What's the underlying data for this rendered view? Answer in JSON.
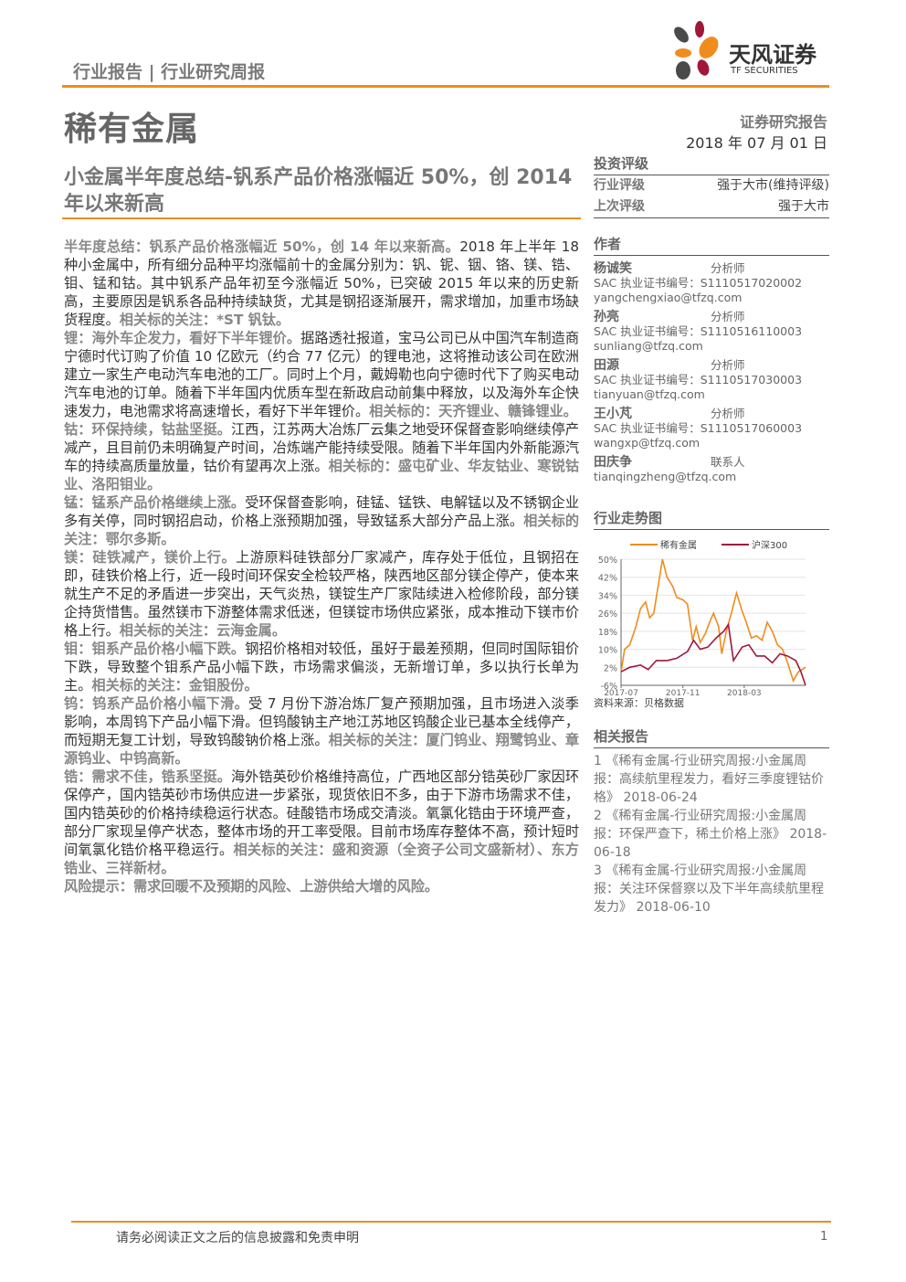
{
  "header": {
    "category": "行业报告 | 行业研究周报",
    "logo_cn": "天风证券",
    "logo_en": "TF SECURITIES",
    "sector": "稀有金属",
    "report_type": "证券研究报告",
    "date": "2018 年 07 月 01 日"
  },
  "title": "小金属半年度总结-钒系产品价格涨幅近 50%，创 2014 年以来新高",
  "paragraphs": [
    {
      "lead": "半年度总结：钒系产品价格涨幅近 50%，创 14 年以来新高。",
      "text": "2018 年上半年 18 种小金属中，所有细分品种平均涨幅前十的金属分别为：钒、铌、铟、铬、镁、锆、钼、锰和钴。其中钒系产品年初至今涨幅近 50%，已突破 2015 年以来的历史新高，主要原因是钒系各品种持续缺货，尤其是钢招逐渐展开，需求增加，加重市场缺货程度。",
      "tail": "相关标的关注：*ST 钒钛。"
    },
    {
      "lead": "锂：海外车企发力，看好下半年锂价。",
      "text": "据路透社报道，宝马公司已从中国汽车制造商宁德时代订购了价值 10 亿欧元（约合 77 亿元）的锂电池，这将推动该公司在欧洲建立一家生产电动汽车电池的工厂。同时上个月，戴姆勒也向宁德时代下了购买电动汽车电池的订单。随着下半年国内优质车型在新政启动前集中释放，以及海外车企快速发力，电池需求将高速增长，看好下半年锂价。",
      "tail": "相关标的：天齐锂业、赣锋锂业。"
    },
    {
      "lead": "钴：环保持续，钴盐坚挺。",
      "text": "江西，江苏两大冶炼厂云集之地受环保督查影响继续停产减产，且目前仍未明确复产时间，冶炼端产能持续受限。随着下半年国内外新能源汽车的持续高质量放量，钴价有望再次上涨。",
      "tail": "相关标的：盛屯矿业、华友钴业、寒锐钴业、洛阳钼业。"
    },
    {
      "lead": "锰：锰系产品价格继续上涨。",
      "text": "受环保督查影响，硅锰、锰铁、电解锰以及不锈钢企业多有关停，同时钢招启动，价格上涨预期加强，导致锰系大部分产品上涨。",
      "tail": "相关标的关注：鄂尔多斯。"
    },
    {
      "lead": "镁：硅铁减产，镁价上行。",
      "text": "上游原料硅铁部分厂家减产，库存处于低位，且钢招在即，硅铁价格上行，近一段时间环保安全检较严格，陕西地区部分镁企停产，使本来就生产不足的矛盾进一步突出，天气炎热，镁锭生产厂家陆续进入检修阶段，部分镁企持货惜售。虽然镁市下游整体需求低迷，但镁锭市场供应紧张，成本推动下镁市价格上行。",
      "tail": "相关标的关注：云海金属。"
    },
    {
      "lead": "钼：钼系产品价格小幅下跌。",
      "text": "钢招价格相对较低，虽好于最差预期，但同时国际钼价下跌，导致整个钼系产品小幅下跌，市场需求偏淡，无新增订单，多以执行长单为主。",
      "tail": "相关标的关注：金钼股份。"
    },
    {
      "lead": "钨：钨系产品价格小幅下滑。",
      "text": "受 7 月份下游冶炼厂复产预期加强，且市场进入淡季影响，本周钨下产品小幅下滑。但钨酸钠主产地江苏地区钨酸企业已基本全线停产，而短期无复工计划，导致钨酸钠价格上涨。",
      "tail": "相关标的关注：厦门钨业、翔鹭钨业、章源钨业、中钨高新。"
    },
    {
      "lead": "锆：需求不佳，锆系坚挺。",
      "text": "海外锆英砂价格维持高位，广西地区部分锆英砂厂家因环保停产，国内锆英砂市场供应进一步紧张，现货依旧不多，由于下游市场需求不佳，国内锆英砂的价格持续稳运行状态。硅酸锆市场成交清淡。氧氯化锆由于环境严查，部分厂家现呈停产状态，整体市场的开工率受限。目前市场库存整体不高，预计短时间氧氯化锆价格平稳运行。",
      "tail": "相关标的关注：盛和资源（全资子公司文盛新材）、东方锆业、三祥新材。"
    },
    {
      "lead": "风险提示：",
      "text": "",
      "tail": "需求回暖不及预期的风险、上游供给大增的风险。"
    }
  ],
  "rating": {
    "heading": "投资评级",
    "rows": [
      {
        "k": "行业评级",
        "v": "强于大市(维持评级)"
      },
      {
        "k": "上次评级",
        "v": "强于大市"
      }
    ]
  },
  "authors": {
    "heading": "作者",
    "list": [
      {
        "name": "杨诚笑",
        "role": "分析师",
        "cert": "SAC 执业证书编号：S1110517020002",
        "email": "yangchengxiao@tfzq.com"
      },
      {
        "name": "孙亮",
        "role": "分析师",
        "cert": "SAC 执业证书编号：S1110516110003",
        "email": "sunliang@tfzq.com"
      },
      {
        "name": "田源",
        "role": "分析师",
        "cert": "SAC 执业证书编号：S1110517030003",
        "email": "tianyuan@tfzq.com"
      },
      {
        "name": "王小芃",
        "role": "分析师",
        "cert": "SAC 执业证书编号：S1110517060003",
        "email": "wangxp@tfzq.com"
      },
      {
        "name": "田庆争",
        "role": "联系人",
        "cert": "",
        "email": "tianqingzheng@tfzq.com"
      }
    ]
  },
  "trend": {
    "heading": "行业走势图",
    "source": "资料来源：贝格数据"
  },
  "chart_data": {
    "type": "line",
    "ylim": [
      -6,
      50
    ],
    "yticks": [
      "50%",
      "42%",
      "34%",
      "26%",
      "18%",
      "10%",
      "2%",
      "-6%"
    ],
    "ytick_values": [
      50,
      42,
      34,
      26,
      18,
      10,
      2,
      -6
    ],
    "xticks": [
      "2017-07",
      "2017-11",
      "2018-03"
    ],
    "xtick_values": [
      "2017-07-03",
      "2017-11-01",
      "2018-03-01"
    ],
    "xlim": [
      "2017-07-03",
      "2018-06-29"
    ],
    "grid": true,
    "legend": "top",
    "series": [
      {
        "name": "稀有金属",
        "color": "#f08c1e",
        "x": [
          "2017-07-03",
          "2017-07-10",
          "2017-07-20",
          "2017-08-01",
          "2017-08-10",
          "2017-08-20",
          "2017-08-28",
          "2017-09-05",
          "2017-09-15",
          "2017-09-22",
          "2017-10-01",
          "2017-10-12",
          "2017-10-20",
          "2017-11-01",
          "2017-11-10",
          "2017-11-20",
          "2017-11-27",
          "2017-12-05",
          "2017-12-15",
          "2017-12-25",
          "2017-12-31",
          "2018-01-10",
          "2018-01-16",
          "2018-01-25",
          "2018-02-05",
          "2018-02-14",
          "2018-02-25",
          "2018-03-05",
          "2018-03-15",
          "2018-03-25",
          "2018-04-05",
          "2018-04-15",
          "2018-04-25",
          "2018-05-05",
          "2018-05-15",
          "2018-05-25",
          "2018-06-05",
          "2018-06-15",
          "2018-06-29"
        ],
        "values": [
          0,
          10,
          12,
          20,
          28,
          31,
          24,
          26,
          40,
          50,
          42,
          38,
          33,
          32,
          30,
          14,
          20,
          13,
          17,
          23,
          26,
          20,
          8,
          18,
          27,
          35,
          27,
          22,
          15,
          16,
          14,
          22,
          18,
          12,
          10,
          4,
          -4,
          0,
          2
        ]
      },
      {
        "name": "沪深300",
        "color": "#a0173a",
        "x": [
          "2017-07-03",
          "2017-07-20",
          "2017-08-10",
          "2017-08-25",
          "2017-09-10",
          "2017-10-01",
          "2017-10-20",
          "2017-11-10",
          "2017-11-22",
          "2017-12-05",
          "2017-12-20",
          "2018-01-05",
          "2018-01-20",
          "2018-01-29",
          "2018-02-08",
          "2018-02-25",
          "2018-03-10",
          "2018-03-25",
          "2018-04-10",
          "2018-04-25",
          "2018-05-10",
          "2018-05-25",
          "2018-06-10",
          "2018-06-20",
          "2018-06-29"
        ],
        "values": [
          0,
          2,
          3,
          1,
          5,
          5,
          6,
          9,
          14,
          10,
          11,
          15,
          18,
          21,
          5,
          11,
          12,
          7,
          7,
          4,
          8,
          7,
          5,
          0,
          -6
        ]
      }
    ]
  },
  "related": {
    "heading": "相关报告",
    "list": [
      {
        "text": "1 《稀有金属-行业研究周报:小金属周报：高续航里程发力，看好三季度锂钴价格》",
        "date": "2018-06-24"
      },
      {
        "text": "2 《稀有金属-行业研究周报:小金属周报：环保严查下，稀土价格上涨》",
        "date": "2018-06-18"
      },
      {
        "text": "3 《稀有金属-行业研究周报:小金属周报：关注环保督察以及下半年高续航里程发力》",
        "date": "2018-06-10"
      }
    ]
  },
  "footer": {
    "disclaimer": "请务必阅读正文之后的信息披露和免责申明",
    "page": "1"
  }
}
